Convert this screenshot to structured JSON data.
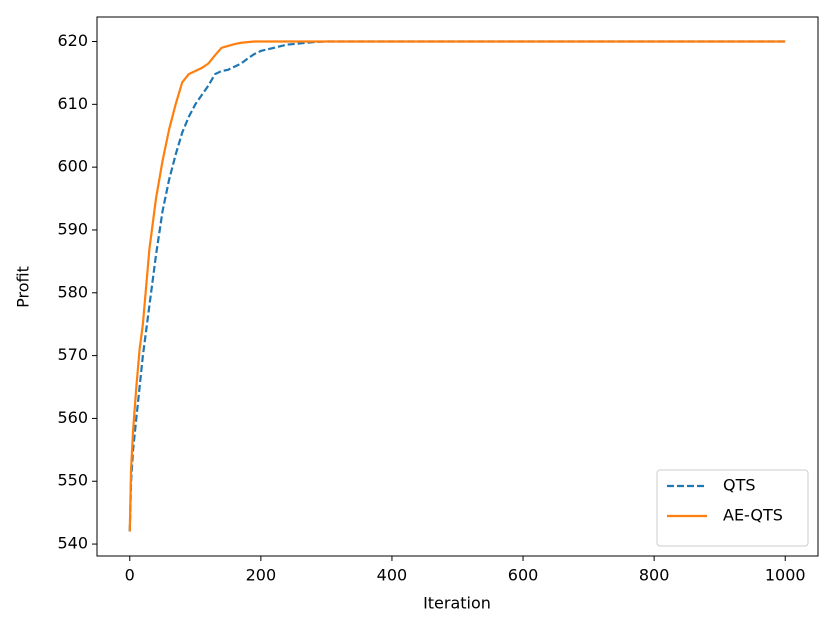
{
  "chart_data": {
    "type": "line",
    "x": [
      0,
      2,
      5,
      10,
      15,
      20,
      30,
      40,
      50,
      60,
      70,
      80,
      90,
      100,
      110,
      120,
      130,
      140,
      150,
      160,
      170,
      180,
      190,
      200,
      220,
      240,
      260,
      280,
      300,
      400,
      500,
      600,
      700,
      800,
      900,
      1000
    ],
    "series": [
      {
        "name": "QTS",
        "color": "#1f77b4",
        "dash": true,
        "values": [
          542,
          550,
          555,
          560,
          565,
          570,
          578,
          586,
          593,
          598,
          602,
          605.5,
          608,
          610,
          611.5,
          613,
          614.8,
          615.3,
          615.5,
          616,
          616.5,
          617.3,
          618,
          618.5,
          619,
          619.5,
          619.7,
          619.9,
          620,
          620,
          620,
          620,
          620,
          620,
          620,
          620
        ]
      },
      {
        "name": "AE-QTS",
        "color": "#ff7f0e",
        "dash": false,
        "values": [
          542,
          552,
          558,
          565,
          571,
          575,
          587,
          595,
          601,
          606,
          610,
          613.5,
          614.8,
          615.3,
          615.8,
          616.5,
          617.8,
          619,
          619.3,
          619.6,
          619.8,
          619.9,
          620,
          620,
          620,
          620,
          620,
          620,
          620,
          620,
          620,
          620,
          620,
          620,
          620,
          620
        ]
      }
    ],
    "x_label": "Iteration",
    "y_label": "Profit",
    "xlim": [
      -50,
      1050
    ],
    "xticks": [
      0,
      200,
      400,
      600,
      800,
      1000
    ],
    "ylim": [
      538.1,
      623.9
    ],
    "yticks": [
      540,
      550,
      560,
      570,
      580,
      590,
      600,
      610,
      620
    ],
    "legend": "lower right",
    "grid": false
  }
}
